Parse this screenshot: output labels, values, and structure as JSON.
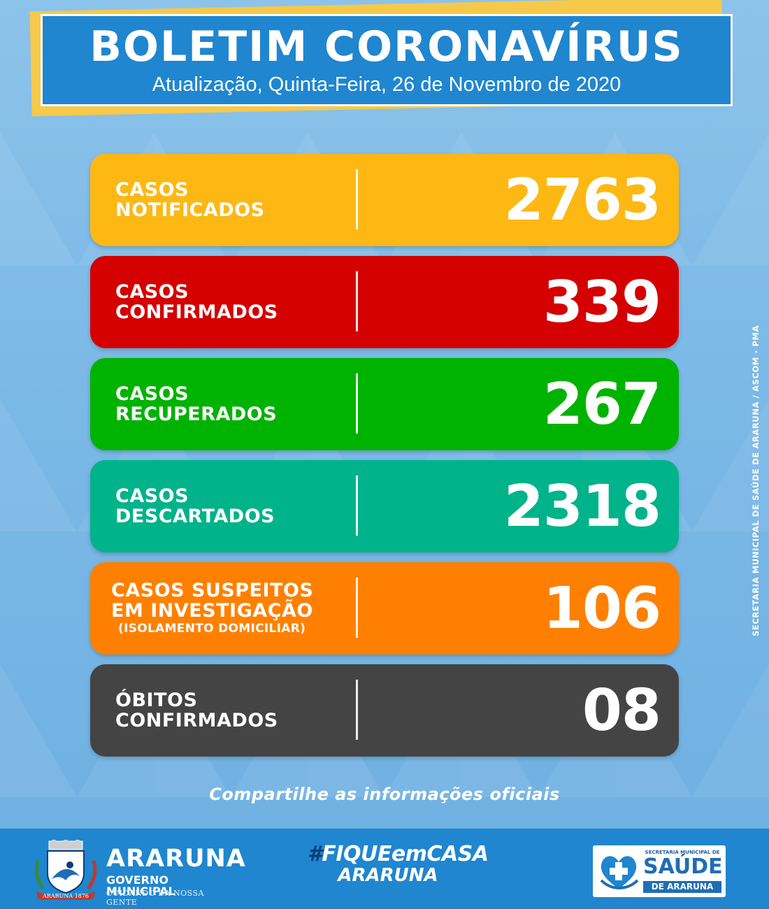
{
  "header": {
    "title": "BOLETIM CORONAVÍRUS",
    "subtitle": "Atualização, Quinta-Feira, 26 de Novembro de 2020"
  },
  "cards": [
    {
      "line1": "CASOS",
      "line2": "NOTIFICADOS",
      "sub": "",
      "value": "2763",
      "color": "#fdb813"
    },
    {
      "line1": "CASOS",
      "line2": "CONFIRMADOS",
      "sub": "",
      "value": "339",
      "color": "#d50000"
    },
    {
      "line1": "CASOS",
      "line2": "RECUPERADOS",
      "sub": "",
      "value": "267",
      "color": "#00b300"
    },
    {
      "line1": "CASOS",
      "line2": "DESCARTADOS",
      "sub": "",
      "value": "2318",
      "color": "#00b38a"
    },
    {
      "line1": "CASOS SUSPEITOS",
      "line2": "EM INVESTIGAÇÃO",
      "sub": "(ISOLAMENTO DOMICILIAR)",
      "value": "106",
      "color": "#ff8000"
    },
    {
      "line1": "ÓBITOS",
      "line2": "CONFIRMADOS",
      "sub": "",
      "value": "08",
      "color": "#444444"
    }
  ],
  "share_text": "Compartilhe as informações oficiais",
  "side_credit": "SECRETARIA MUNICIPAL DE SAÚDE DE ARARUNA / ASCOM - PMA",
  "footer": {
    "brand_name": "ARARUNA",
    "brand_gov": "GOVERNO MUNICIPAL",
    "brand_tagline": "CUIDANDO DA NOSSA GENTE",
    "crest_text": "ARARUNA 1876",
    "hashtag_line1_hash": "#",
    "hashtag_line1": "FIQUEemCASA",
    "hashtag_line2": "ARARUNA",
    "secretaria_small": "SECRETARIA MUNICIPAL DE",
    "secretaria_main": "SAÚDE",
    "secretaria_sub": "DE ARARUNA"
  },
  "colors": {
    "header_blue": "#1f86cf",
    "header_accent": "#f6c94a",
    "footer_blue": "#1f86cf"
  }
}
